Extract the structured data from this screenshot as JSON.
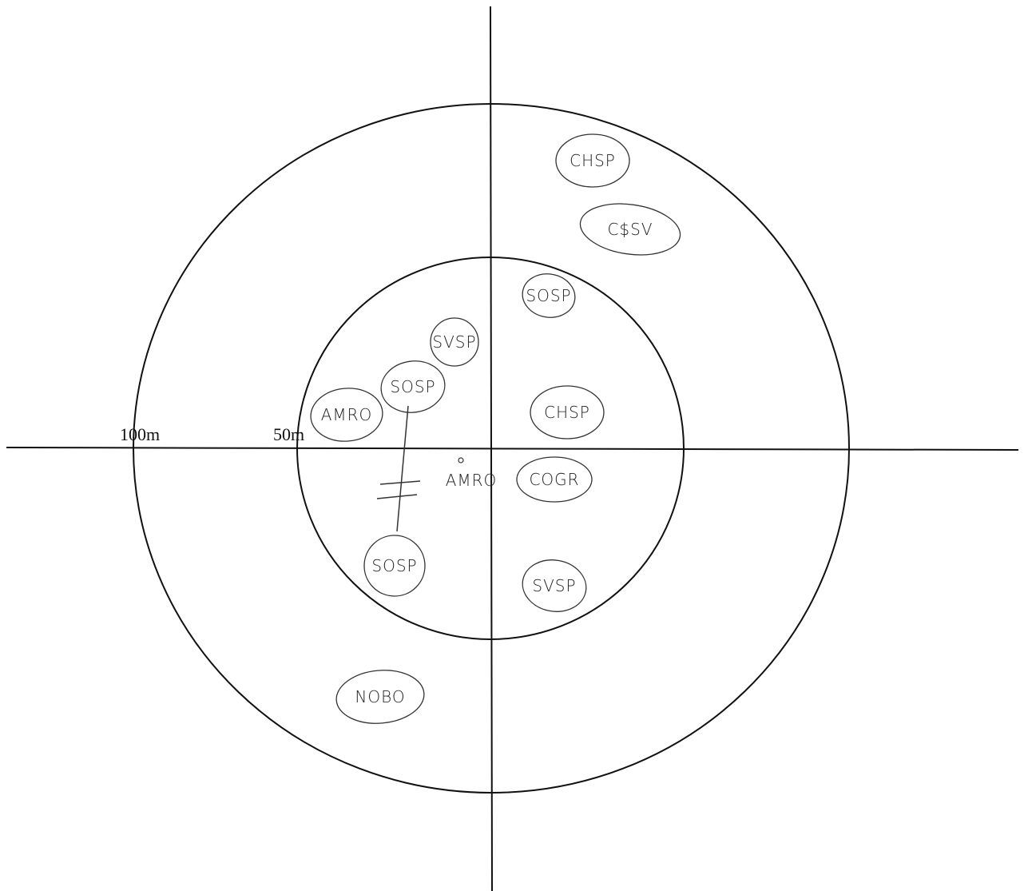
{
  "scale_labels": [
    "100m",
    "50m"
  ],
  "center_label": "AMRO",
  "labels": [
    "CHSP",
    "C$SV",
    "SOSP",
    "SVSP",
    "SOSP",
    "AMRO",
    "CHSP",
    "COGR",
    "SOSP",
    "SVSP",
    "NOBO"
  ]
}
